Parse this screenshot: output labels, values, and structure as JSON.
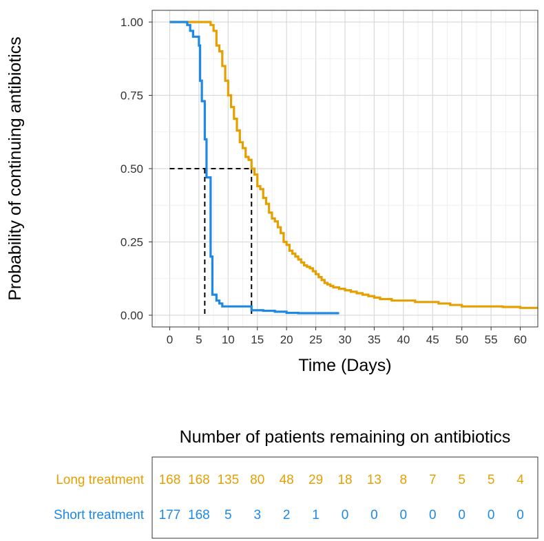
{
  "chart_data": [
    {
      "type": "line",
      "subtype": "kaplan-meier step curve",
      "title": "",
      "xlabel": "Time (Days)",
      "ylabel": "Probability of continuing antibiotics",
      "xlim": [
        -3,
        63
      ],
      "ylim": [
        -0.04,
        1.04
      ],
      "x_ticks": [
        0,
        5,
        10,
        15,
        20,
        25,
        30,
        35,
        40,
        45,
        50,
        55,
        60
      ],
      "x_tick_labels": [
        "0",
        "5",
        "10",
        "15",
        "20",
        "25",
        "30",
        "35",
        "40",
        "45",
        "50",
        "55",
        "60"
      ],
      "y_ticks": [
        0,
        0.25,
        0.5,
        0.75,
        1.0
      ],
      "y_tick_labels": [
        "0.00",
        "0.25",
        "0.50",
        "0.75",
        "1.00"
      ],
      "grid": true,
      "median_lines": [
        {
          "series": "Short treatment",
          "x": 6,
          "y": 0.5
        },
        {
          "series": "Long treatment",
          "x": 14,
          "y": 0.5
        }
      ],
      "series": [
        {
          "name": "Long treatment",
          "color": "#E69F00",
          "x": [
            0,
            7,
            7.5,
            8,
            8.5,
            9,
            9.5,
            10,
            10.5,
            11,
            11.5,
            12,
            12.5,
            13,
            13.5,
            14,
            14.5,
            15,
            15.5,
            16,
            16.5,
            17,
            17.5,
            18,
            18.5,
            19,
            19.5,
            20,
            20.5,
            21,
            21.5,
            22,
            22.5,
            23,
            23.5,
            24,
            24.5,
            25,
            25.5,
            26,
            26.5,
            27,
            27.5,
            28,
            29,
            30,
            31,
            32,
            33,
            34,
            35,
            36,
            37,
            38,
            40,
            42,
            44,
            45,
            46,
            47,
            48,
            50,
            52,
            55,
            57,
            58,
            60,
            63
          ],
          "y": [
            1.0,
            0.99,
            0.97,
            0.92,
            0.9,
            0.85,
            0.8,
            0.75,
            0.71,
            0.67,
            0.63,
            0.59,
            0.57,
            0.54,
            0.53,
            0.5,
            0.48,
            0.44,
            0.43,
            0.4,
            0.38,
            0.35,
            0.33,
            0.32,
            0.3,
            0.28,
            0.25,
            0.24,
            0.22,
            0.21,
            0.2,
            0.19,
            0.18,
            0.17,
            0.165,
            0.16,
            0.15,
            0.14,
            0.13,
            0.12,
            0.11,
            0.105,
            0.1,
            0.095,
            0.09,
            0.085,
            0.08,
            0.075,
            0.07,
            0.065,
            0.06,
            0.055,
            0.055,
            0.05,
            0.05,
            0.045,
            0.045,
            0.045,
            0.04,
            0.04,
            0.035,
            0.03,
            0.03,
            0.03,
            0.028,
            0.028,
            0.025,
            0.025
          ]
        },
        {
          "name": "Short treatment",
          "color": "#1E88E5",
          "x": [
            0,
            3,
            3.5,
            4,
            5,
            5.2,
            5.5,
            6,
            6.3,
            7,
            7.3,
            8,
            8.5,
            9,
            10,
            14,
            16,
            18,
            20,
            22,
            29
          ],
          "y": [
            1.0,
            0.99,
            0.97,
            0.95,
            0.92,
            0.8,
            0.73,
            0.6,
            0.47,
            0.2,
            0.07,
            0.05,
            0.04,
            0.03,
            0.03,
            0.017,
            0.015,
            0.012,
            0.008,
            0.007,
            0.007
          ]
        }
      ]
    },
    {
      "type": "table",
      "title": "Number of patients remaining on antibiotics",
      "columns_x": [
        0,
        5,
        10,
        15,
        20,
        25,
        30,
        35,
        40,
        45,
        50,
        55,
        60
      ],
      "rows": [
        {
          "label": "Long treatment",
          "color": "#E69F00",
          "values": [
            "168",
            "168",
            "135",
            "80",
            "48",
            "29",
            "18",
            "13",
            "8",
            "7",
            "5",
            "5",
            "4"
          ]
        },
        {
          "label": "Short treatment",
          "color": "#1E88E5",
          "values": [
            "177",
            "168",
            "5",
            "3",
            "2",
            "1",
            "0",
            "0",
            "0",
            "0",
            "0",
            "0",
            "0"
          ]
        }
      ]
    }
  ]
}
